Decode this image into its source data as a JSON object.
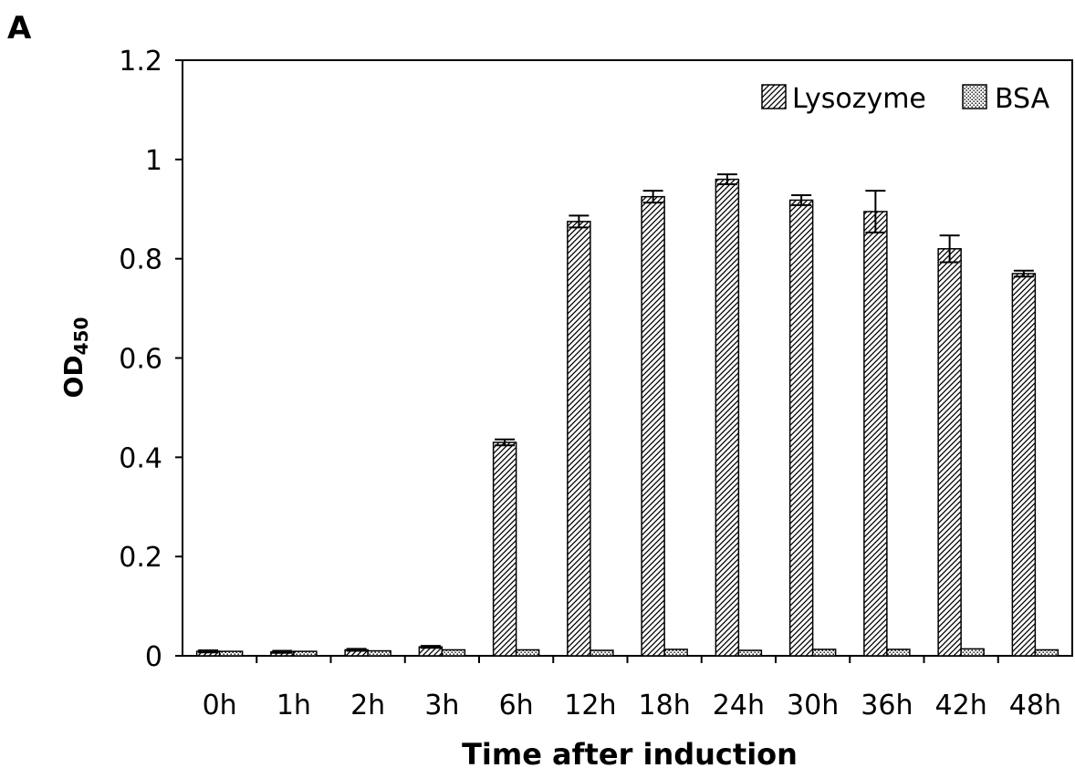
{
  "panel_label": "A",
  "chart_data": {
    "type": "bar",
    "categories": [
      "0h",
      "1h",
      "2h",
      "3h",
      "6h",
      "12h",
      "18h",
      "24h",
      "30h",
      "36h",
      "42h",
      "48h"
    ],
    "series": [
      {
        "name": "Lysozyme",
        "values": [
          0.009,
          0.008,
          0.012,
          0.018,
          0.43,
          0.875,
          0.925,
          0.96,
          0.918,
          0.895,
          0.82,
          0.77
        ],
        "errors": [
          0.002,
          0.002,
          0.002,
          0.002,
          0.006,
          0.012,
          0.012,
          0.01,
          0.01,
          0.042,
          0.027,
          0.006
        ],
        "pattern": "diagonal-hatch"
      },
      {
        "name": "BSA",
        "values": [
          0.009,
          0.009,
          0.01,
          0.012,
          0.012,
          0.011,
          0.013,
          0.011,
          0.013,
          0.013,
          0.014,
          0.012
        ],
        "pattern": "dots"
      }
    ],
    "xlabel": "Time after induction",
    "ylabel": "OD",
    "ylabel_subscript": "450",
    "ylim": [
      0,
      1.2
    ],
    "yticks": [
      "0",
      "0.2",
      "0.4",
      "0.6",
      "0.8",
      "1",
      "1.2"
    ],
    "grid": false,
    "legend_position": "top-right"
  }
}
